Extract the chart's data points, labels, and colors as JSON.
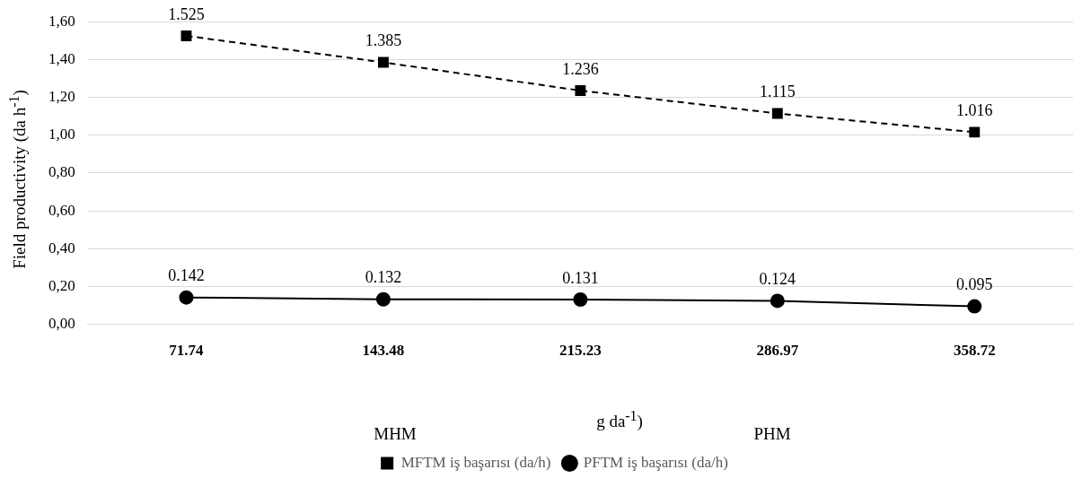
{
  "chart_data": {
    "type": "line",
    "categories": [
      "71.74",
      "143.48",
      "215.23",
      "286.97",
      "358.72"
    ],
    "ylabel": "Field productivity (da h$^{-1}$)",
    "annotations": [
      "g da$^{-1}$)",
      "MHM",
      "PHM"
    ],
    "series": [
      {
        "name": "MFTM iş başarısı (da/h)",
        "color": "#000000",
        "values": [
          1.525,
          1.385,
          1.236,
          1.115,
          1.016
        ],
        "marker": "square",
        "line_style": "dashed"
      },
      {
        "name": "PFTM iş başarısı (da/h)",
        "color": "#000000",
        "values": [
          0.142,
          0.132,
          0.131,
          0.124,
          0.095
        ],
        "marker": "circle",
        "line_style": "solid"
      }
    ],
    "ylim": [
      0,
      1.6
    ],
    "yticks": [
      {
        "value": 0,
        "label": "0,00"
      },
      {
        "value": 0.2,
        "label": "0,20"
      },
      {
        "value": 0.4,
        "label": "0,40"
      },
      {
        "value": 0.6,
        "label": "0,60"
      },
      {
        "value": 0.8,
        "label": "0,80"
      },
      {
        "value": 1.0,
        "label": "1,00"
      },
      {
        "value": 1.2,
        "label": "1,20"
      },
      {
        "value": 1.4,
        "label": "1,40"
      },
      {
        "value": 1.6,
        "label": "1,60"
      }
    ],
    "grid": "y",
    "legend": "bottom",
    "data_labels": true
  }
}
